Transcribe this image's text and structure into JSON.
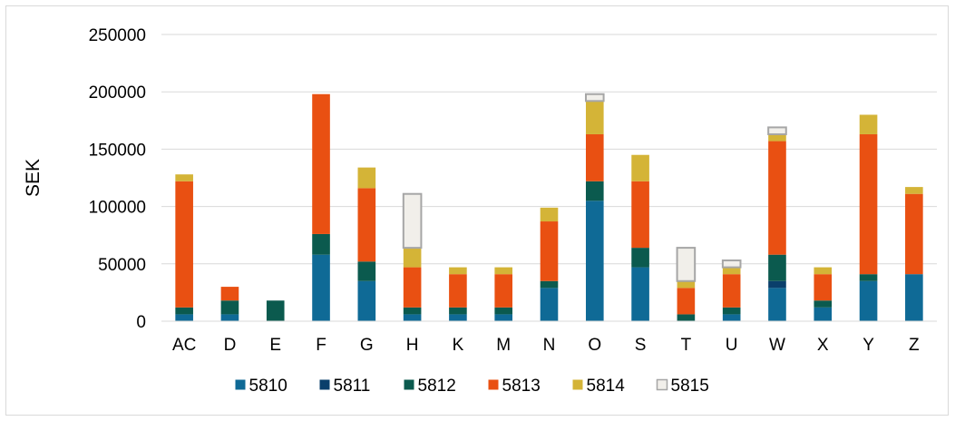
{
  "chart_data": {
    "type": "bar",
    "stacked": true,
    "ylabel": "SEK",
    "ylim": [
      0,
      250000
    ],
    "yticks": [
      "0",
      "50000",
      "100000",
      "150000",
      "200000",
      "250000"
    ],
    "grid": true,
    "legend_position": "bottom",
    "categories": [
      "AC",
      "D",
      "E",
      "F",
      "G",
      "H",
      "K",
      "M",
      "N",
      "O",
      "S",
      "T",
      "U",
      "W",
      "X",
      "Y",
      "Z"
    ],
    "series": [
      {
        "name": "5810",
        "color": "#0f6a96",
        "values": [
          6000,
          6000,
          0,
          58000,
          35000,
          6000,
          6000,
          6000,
          29000,
          105000,
          47000,
          0,
          6000,
          29000,
          12000,
          35000,
          41000
        ]
      },
      {
        "name": "5811",
        "color": "#0a3f6b",
        "values": [
          0,
          0,
          0,
          0,
          0,
          0,
          0,
          0,
          0,
          0,
          0,
          0,
          0,
          6000,
          0,
          0,
          0
        ]
      },
      {
        "name": "5812",
        "color": "#0b5a4e",
        "values": [
          6000,
          12000,
          18000,
          18000,
          17000,
          6000,
          6000,
          6000,
          6000,
          17000,
          17000,
          6000,
          6000,
          23000,
          6000,
          6000,
          0
        ]
      },
      {
        "name": "5813",
        "color": "#e95012",
        "values": [
          110000,
          12000,
          0,
          122000,
          64000,
          35000,
          29000,
          29000,
          52000,
          41000,
          58000,
          23000,
          29000,
          99000,
          23000,
          122000,
          70000
        ]
      },
      {
        "name": "5814",
        "color": "#d4b437",
        "values": [
          6000,
          0,
          0,
          0,
          18000,
          17000,
          6000,
          6000,
          12000,
          29000,
          23000,
          6000,
          6000,
          6000,
          6000,
          17000,
          6000
        ]
      },
      {
        "name": "5815",
        "color": "#f1efea",
        "values": [
          0,
          0,
          0,
          0,
          0,
          47000,
          0,
          0,
          0,
          6000,
          0,
          29000,
          6000,
          6000,
          0,
          0,
          0
        ]
      }
    ]
  }
}
